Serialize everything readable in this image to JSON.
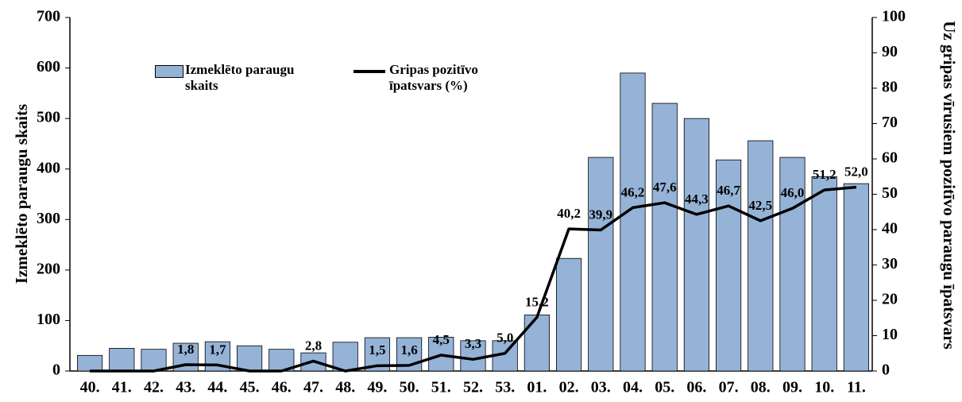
{
  "chart_data": {
    "type": "bar-line",
    "categories": [
      "40.",
      "41.",
      "42.",
      "43.",
      "44.",
      "45.",
      "46.",
      "47.",
      "48.",
      "49.",
      "50.",
      "51.",
      "52.",
      "53.",
      "01.",
      "02.",
      "03.",
      "04.",
      "05.",
      "06.",
      "07.",
      "08.",
      "09.",
      "10.",
      "11."
    ],
    "y_label": "Izmeklēto paraugu skaits",
    "y2_label": "Uz gripas vīrusiem pozitīvo paraugu īpatsvars",
    "ylim": [
      0,
      700
    ],
    "yticks": [
      0,
      100,
      200,
      300,
      400,
      500,
      600,
      700
    ],
    "y2lim": [
      0,
      100
    ],
    "y2ticks": [
      0,
      10,
      20,
      30,
      40,
      50,
      60,
      70,
      80,
      90,
      100
    ],
    "grid": false,
    "series": [
      {
        "name": "Izmeklēto paraugu skaits",
        "type": "bar",
        "color": "#95b3d7",
        "values": [
          31,
          45,
          43,
          55,
          58,
          50,
          43,
          36,
          57,
          66,
          66,
          67,
          60,
          60,
          111,
          223,
          423,
          590,
          530,
          500,
          418,
          456,
          423,
          385,
          371
        ]
      },
      {
        "name": "Gripas pozitīvo īpatsvars (%)",
        "type": "line",
        "axis": "y2",
        "color": "#000000",
        "values": [
          0,
          0,
          0,
          1.8,
          1.7,
          0,
          0,
          2.8,
          0,
          1.5,
          1.6,
          4.5,
          3.3,
          5.0,
          15.2,
          40.2,
          39.9,
          46.2,
          47.6,
          44.3,
          46.7,
          42.5,
          46.0,
          51.2,
          52.0
        ],
        "value_labels": [
          null,
          null,
          null,
          "1,8",
          "1,7",
          null,
          null,
          "2,8",
          null,
          "1,5",
          "1,6",
          "4,5",
          "3,3",
          "5,0",
          "15,2",
          "40,2",
          "39,9",
          "46,2",
          "47,6",
          "44,3",
          "46,7",
          "42,5",
          "46,0",
          "51,2",
          "52,0"
        ]
      }
    ]
  }
}
